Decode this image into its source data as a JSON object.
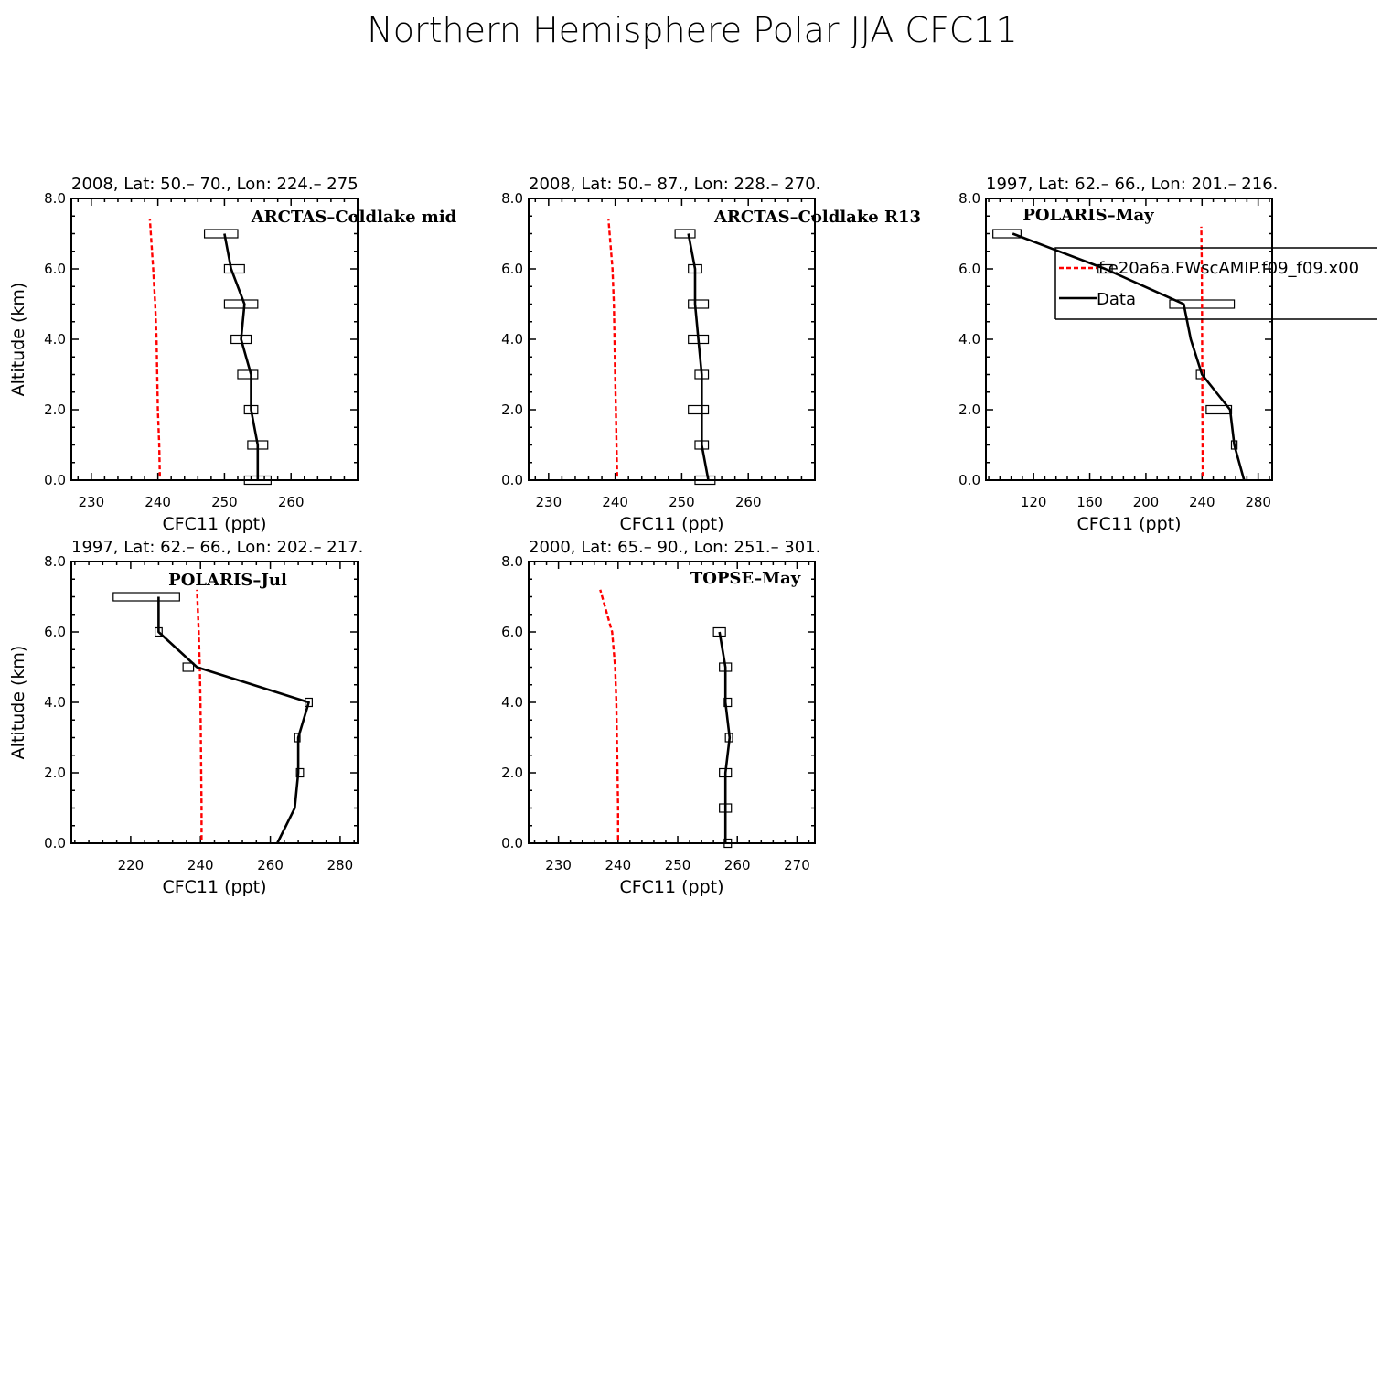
{
  "figure": {
    "title": "Northern Hemisphere Polar JJA CFC11",
    "legend": {
      "model_label": "f.e20a6a.FWscAMIP.f09_f09.x00",
      "data_label": "Data",
      "model_color": "#ff0000",
      "data_color": "#000000"
    }
  },
  "chart_data": [
    {
      "type": "line",
      "title": "2008, Lat:  50.– 70., Lon: 224.– 275",
      "campaign": "ARCTAS–Coldlake mid",
      "xlabel": "CFC11 (ppt)",
      "ylabel": "Altitude (km)",
      "xlim": [
        227,
        270
      ],
      "ylim": [
        0,
        8
      ],
      "xticks": [
        230,
        240,
        250,
        260
      ],
      "xtick_labels": [
        "230",
        "240",
        "250",
        "260"
      ],
      "yticks": [
        0,
        2,
        4,
        6,
        8
      ],
      "ytick_labels": [
        "0.0",
        "2.0",
        "4.0",
        "6.0",
        "8.0"
      ],
      "series": [
        {
          "name": "f.e20a6a.FWscAMIP.f09_f09.x00",
          "style": "dashed",
          "color": "#ff0000",
          "x": [
            240.3,
            240.2,
            240.0,
            239.9,
            239.8,
            239.6,
            239.3,
            238.8
          ],
          "y": [
            0.1,
            1.0,
            2.0,
            3.0,
            4.0,
            5.0,
            6.0,
            7.4
          ]
        },
        {
          "name": "Data",
          "style": "solid",
          "color": "#000000",
          "x": [
            255.0,
            255.0,
            254.0,
            254.0,
            252.5,
            253.0,
            251.0,
            250.0
          ],
          "y": [
            0.0,
            1.0,
            2.0,
            3.0,
            4.0,
            5.0,
            6.0,
            7.0
          ]
        }
      ],
      "ranges": [
        {
          "y": 0.0,
          "lo": 253.0,
          "hi": 257.0
        },
        {
          "y": 1.0,
          "lo": 253.5,
          "hi": 256.5
        },
        {
          "y": 2.0,
          "lo": 253.0,
          "hi": 255.0
        },
        {
          "y": 3.0,
          "lo": 252.0,
          "hi": 255.0
        },
        {
          "y": 4.0,
          "lo": 251.0,
          "hi": 254.0
        },
        {
          "y": 5.0,
          "lo": 250.0,
          "hi": 255.0
        },
        {
          "y": 6.0,
          "lo": 250.0,
          "hi": 253.0
        },
        {
          "y": 7.0,
          "lo": 247.0,
          "hi": 252.0
        }
      ]
    },
    {
      "type": "line",
      "title": "2008, Lat:  50.– 87., Lon: 228.– 270.",
      "campaign": "ARCTAS–Coldlake R13",
      "xlabel": "CFC11 (ppt)",
      "ylabel": "",
      "xlim": [
        227,
        270
      ],
      "ylim": [
        0,
        8
      ],
      "xticks": [
        230,
        240,
        250,
        260
      ],
      "xtick_labels": [
        "230",
        "240",
        "250",
        "260"
      ],
      "yticks": [
        0,
        2,
        4,
        6,
        8
      ],
      "ytick_labels": [
        "0.0",
        "2.0",
        "4.0",
        "6.0",
        "8.0"
      ],
      "series": [
        {
          "name": "f.e20a6a.FWscAMIP.f09_f09.x00",
          "style": "dashed",
          "color": "#ff0000",
          "x": [
            240.3,
            240.2,
            240.1,
            240.0,
            239.9,
            239.8,
            239.6,
            239.0
          ],
          "y": [
            0.1,
            1.0,
            2.0,
            3.0,
            4.0,
            5.0,
            6.0,
            7.4
          ]
        },
        {
          "name": "Data",
          "style": "solid",
          "color": "#000000",
          "x": [
            254.0,
            253.0,
            253.0,
            253.0,
            252.5,
            252.0,
            252.0,
            251.0
          ],
          "y": [
            0.0,
            1.0,
            2.0,
            3.0,
            4.0,
            5.0,
            6.0,
            7.0
          ]
        }
      ],
      "ranges": [
        {
          "y": 0.0,
          "lo": 252.0,
          "hi": 255.0
        },
        {
          "y": 1.0,
          "lo": 252.0,
          "hi": 254.0
        },
        {
          "y": 2.0,
          "lo": 251.0,
          "hi": 254.0
        },
        {
          "y": 3.0,
          "lo": 252.0,
          "hi": 254.0
        },
        {
          "y": 4.0,
          "lo": 251.0,
          "hi": 254.0
        },
        {
          "y": 5.0,
          "lo": 251.0,
          "hi": 254.0
        },
        {
          "y": 6.0,
          "lo": 251.0,
          "hi": 253.0
        },
        {
          "y": 7.0,
          "lo": 249.0,
          "hi": 252.0
        }
      ]
    },
    {
      "type": "line",
      "title": "1997, Lat: 62.– 66., Lon: 201.– 216.",
      "campaign": "POLARIS–May",
      "xlabel": "CFC11 (ppt)",
      "ylabel": "",
      "xlim": [
        86,
        290
      ],
      "ylim": [
        0,
        8
      ],
      "xticks": [
        120,
        160,
        200,
        240,
        280
      ],
      "xtick_labels": [
        "120",
        "160",
        "200",
        "240",
        "280"
      ],
      "yticks": [
        0,
        2,
        4,
        6,
        8
      ],
      "ytick_labels": [
        "0.0",
        "2.0",
        "4.0",
        "6.0",
        "8.0"
      ],
      "series": [
        {
          "name": "f.e20a6a.FWscAMIP.f09_f09.x00",
          "style": "dashed",
          "color": "#ff0000",
          "x": [
            240.5,
            240.4,
            240.3,
            240.2,
            240.1,
            240.0,
            239.9,
            239.5
          ],
          "y": [
            0.1,
            1.0,
            2.0,
            3.0,
            4.0,
            5.0,
            6.0,
            7.2
          ]
        },
        {
          "name": "Data",
          "style": "solid",
          "color": "#000000",
          "x": [
            270.0,
            263.0,
            260.0,
            240.0,
            232.0,
            227.0,
            171.0,
            105.0
          ],
          "y": [
            0.0,
            1.0,
            2.0,
            3.0,
            4.0,
            5.0,
            6.0,
            7.0
          ]
        }
      ],
      "ranges": [
        {
          "y": 1.0,
          "lo": 261.0,
          "hi": 265.0
        },
        {
          "y": 2.0,
          "lo": 243.0,
          "hi": 261.0
        },
        {
          "y": 3.0,
          "lo": 236.0,
          "hi": 242.0
        },
        {
          "y": 5.0,
          "lo": 217.0,
          "hi": 263.0
        },
        {
          "y": 6.0,
          "lo": 166.0,
          "hi": 176.0
        },
        {
          "y": 7.0,
          "lo": 91.0,
          "hi": 111.0
        }
      ]
    },
    {
      "type": "line",
      "title": "1997, Lat: 62.– 66., Lon: 202.– 217.",
      "campaign": "POLARIS–Jul",
      "xlabel": "CFC11 (ppt)",
      "ylabel": "Altitude (km)",
      "xlim": [
        203,
        285
      ],
      "ylim": [
        0,
        8
      ],
      "xticks": [
        220,
        240,
        260,
        280
      ],
      "xtick_labels": [
        "220",
        "240",
        "260",
        "280"
      ],
      "yticks": [
        0,
        2,
        4,
        6,
        8
      ],
      "ytick_labels": [
        "0.0",
        "2.0",
        "4.0",
        "6.0",
        "8.0"
      ],
      "series": [
        {
          "name": "f.e20a6a.FWscAMIP.f09_f09.x00",
          "style": "dashed",
          "color": "#ff0000",
          "x": [
            240.3,
            240.3,
            240.2,
            240.1,
            240.0,
            239.8,
            239.5,
            239.0
          ],
          "y": [
            0.1,
            1.0,
            2.0,
            3.0,
            4.0,
            5.0,
            6.0,
            7.2
          ]
        },
        {
          "name": "Data",
          "style": "solid",
          "color": "#000000",
          "x": [
            262.0,
            267.0,
            268.0,
            268.0,
            271.0,
            239.0,
            228.0,
            228.0
          ],
          "y": [
            0.0,
            1.0,
            2.0,
            3.0,
            4.0,
            5.0,
            6.0,
            7.0
          ]
        }
      ],
      "ranges": [
        {
          "y": 2.0,
          "lo": 267.5,
          "hi": 269.5
        },
        {
          "y": 3.0,
          "lo": 267.0,
          "hi": 268.5
        },
        {
          "y": 4.0,
          "lo": 270.0,
          "hi": 272.0
        },
        {
          "y": 5.0,
          "lo": 235.0,
          "hi": 238.0
        },
        {
          "y": 6.0,
          "lo": 227.0,
          "hi": 229.0
        },
        {
          "y": 7.0,
          "lo": 215.0,
          "hi": 234.0
        }
      ]
    },
    {
      "type": "line",
      "title": "2000, Lat: 65.– 90., Lon: 251.– 301.",
      "campaign": "TOPSE–May",
      "xlabel": "CFC11 (ppt)",
      "ylabel": "",
      "xlim": [
        225,
        273
      ],
      "ylim": [
        0,
        8
      ],
      "xticks": [
        230,
        240,
        250,
        260,
        270
      ],
      "xtick_labels": [
        "230",
        "240",
        "250",
        "260",
        "270"
      ],
      "yticks": [
        0,
        2,
        4,
        6,
        8
      ],
      "ytick_labels": [
        "0.0",
        "2.0",
        "4.0",
        "6.0",
        "8.0"
      ],
      "series": [
        {
          "name": "f.e20a6a.FWscAMIP.f09_f09.x00",
          "style": "dashed",
          "color": "#ff0000",
          "x": [
            240.0,
            240.0,
            239.9,
            239.8,
            239.7,
            239.5,
            239.0,
            237.0
          ],
          "y": [
            0.1,
            1.0,
            2.0,
            3.0,
            4.0,
            5.0,
            6.0,
            7.2
          ]
        },
        {
          "name": "Data",
          "style": "solid",
          "color": "#000000",
          "x": [
            258.0,
            258.0,
            258.0,
            258.7,
            258.0,
            258.0,
            257.0
          ],
          "y": [
            0.0,
            1.0,
            2.0,
            3.0,
            4.0,
            5.0,
            6.0
          ]
        }
      ],
      "ranges": [
        {
          "y": 0.0,
          "lo": 257.8,
          "hi": 259.0
        },
        {
          "y": 1.0,
          "lo": 257.0,
          "hi": 259.0
        },
        {
          "y": 2.0,
          "lo": 257.0,
          "hi": 259.0
        },
        {
          "y": 3.0,
          "lo": 258.0,
          "hi": 259.2
        },
        {
          "y": 4.0,
          "lo": 257.8,
          "hi": 259.0
        },
        {
          "y": 5.0,
          "lo": 257.0,
          "hi": 259.0
        },
        {
          "y": 6.0,
          "lo": 256.0,
          "hi": 258.0
        }
      ]
    }
  ]
}
